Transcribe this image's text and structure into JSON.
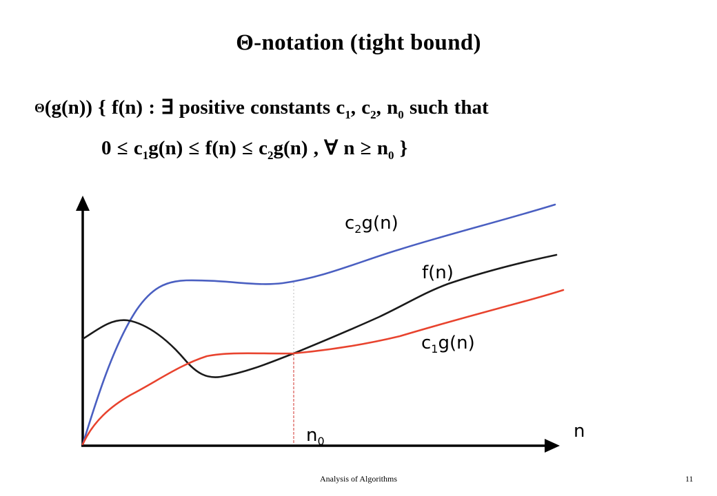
{
  "slide": {
    "title": "Θ-notation (tight bound)"
  },
  "definition": {
    "line1": {
      "theta": "Θ",
      "part1": "(g(n)) { f(n) : ∃ positive constants c",
      "sub1": "1",
      "part2": ", c",
      "sub2": "2",
      "part3": ", n",
      "sub3": "0",
      "part4": " such that"
    },
    "line2": {
      "part1": "0 ≤ c",
      "sub1": "1",
      "part2": "g(n) ≤ f(n) ≤ c",
      "sub2": "2",
      "part3": "g(n) , ∀ n ≥ n",
      "sub3": "0",
      "part4": " }"
    }
  },
  "graph": {
    "labels": {
      "upper_prefix": "c",
      "upper_sub": "2",
      "upper_suffix": "g(n)",
      "middle": "f(n)",
      "lower_prefix": "c",
      "lower_sub": "1",
      "lower_suffix": "g(n)",
      "threshold_prefix": "n",
      "threshold_sub": "0",
      "x_axis": "n"
    },
    "colors": {
      "upper_bound": "#4a5fc1",
      "function": "#1a1a1a",
      "lower_bound": "#e8432e",
      "threshold_line": "#d9534f",
      "axes": "#000000"
    }
  },
  "footer": {
    "title": "Analysis of Algorithms",
    "page": "11"
  }
}
